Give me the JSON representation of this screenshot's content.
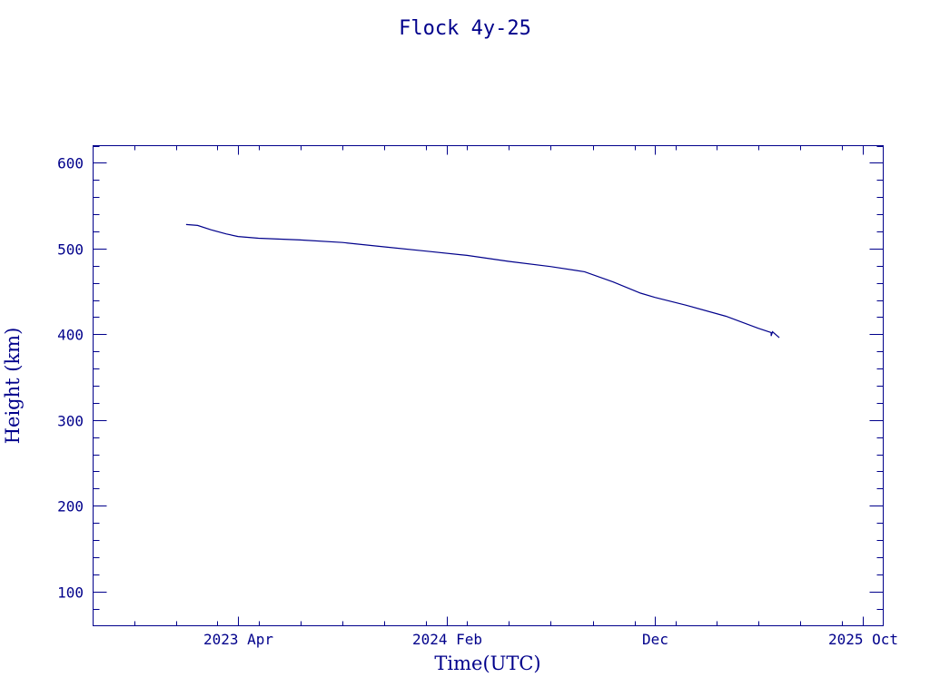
{
  "chart_data": {
    "type": "line",
    "title": "Flock 4y-25",
    "xlabel": "Time(UTC)",
    "ylabel": "Height (km)",
    "x_type": "date",
    "xlim": [
      "2022-09-01",
      "2025-10-31"
    ],
    "ylim": [
      60,
      620
    ],
    "x_ticks": [
      {
        "date": "2023-04-01",
        "label": "2023 Apr"
      },
      {
        "date": "2024-02-01",
        "label": "2024 Feb"
      },
      {
        "date": "2024-12-01",
        "label": "Dec"
      },
      {
        "date": "2025-10-01",
        "label": "2025 Oct"
      }
    ],
    "x_minor_tick_dates": [
      "2022-11-01",
      "2023-01-01",
      "2023-03-01",
      "2023-05-01",
      "2023-07-01",
      "2023-09-01",
      "2023-11-01",
      "2024-01-01",
      "2024-03-01",
      "2024-05-01",
      "2024-07-01",
      "2024-09-01",
      "2024-11-01",
      "2025-01-01",
      "2025-03-01",
      "2025-05-01",
      "2025-07-01",
      "2025-09-01"
    ],
    "y_ticks": [
      100,
      200,
      300,
      400,
      500,
      600
    ],
    "y_minor_step": 20,
    "grid": false,
    "legend": "none",
    "color": "#00008b",
    "series": [
      {
        "x": [
          "2023-01-15",
          "2023-02-01",
          "2023-02-20",
          "2023-03-15",
          "2023-04-01",
          "2023-05-01",
          "2023-07-01",
          "2023-09-01",
          "2023-11-01",
          "2024-01-01",
          "2024-03-01",
          "2024-05-01",
          "2024-07-01",
          "2024-08-20",
          "2024-10-01",
          "2024-11-10",
          "2024-12-01",
          "2025-01-15",
          "2025-03-15",
          "2025-05-01",
          "2025-05-20",
          "2025-05-20",
          "2025-05-22",
          "2025-06-01"
        ],
        "y": [
          528,
          527,
          522,
          517,
          514,
          512,
          510,
          507,
          502,
          497,
          492,
          485,
          479,
          473,
          461,
          448,
          443,
          434,
          421,
          407,
          402,
          398,
          403,
          396
        ]
      }
    ]
  }
}
